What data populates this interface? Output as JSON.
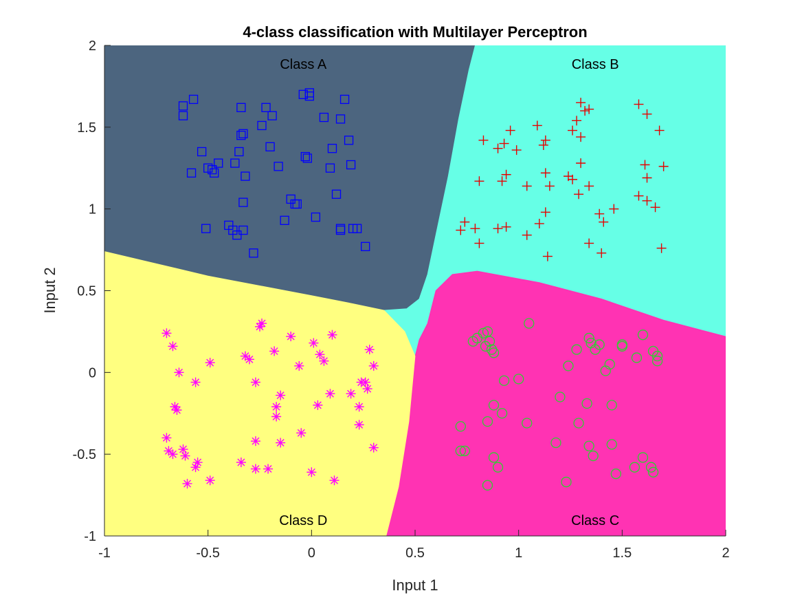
{
  "chart_data": {
    "type": "scatter",
    "title": "4-class classification with Multilayer Perceptron",
    "xlabel": "Input 1",
    "ylabel": "Input 2",
    "xlim": [
      -1,
      2
    ],
    "ylim": [
      -1,
      2
    ],
    "xticks": [
      -1,
      -0.5,
      0,
      0.5,
      1,
      1.5,
      2
    ],
    "xtick_labels": [
      "-1",
      "-0.5",
      "0",
      "0.5",
      "1",
      "1.5",
      "2"
    ],
    "yticks": [
      -1,
      -0.5,
      0,
      0.5,
      1,
      1.5,
      2
    ],
    "ytick_labels": [
      "-1",
      "-0.5",
      "0",
      "0.5",
      "1",
      "1.5",
      "2"
    ],
    "grid": false,
    "regions": [
      {
        "label": "Class A",
        "color": "#4c657f",
        "label_at": [
          -0.04,
          1.88
        ],
        "boundary": [
          [
            -1,
            2
          ],
          [
            0.79,
            2
          ],
          [
            0.76,
            1.85
          ],
          [
            0.71,
            1.55
          ],
          [
            0.66,
            1.2
          ],
          [
            0.61,
            0.9
          ],
          [
            0.56,
            0.6
          ],
          [
            0.52,
            0.45
          ],
          [
            0.46,
            0.39
          ],
          [
            0.35,
            0.38
          ],
          [
            0.2,
            0.42
          ],
          [
            0,
            0.47
          ],
          [
            -0.5,
            0.59
          ],
          [
            -1,
            0.74
          ]
        ]
      },
      {
        "label": "Class B",
        "color": "#66ffe6",
        "label_at": [
          1.37,
          1.88
        ],
        "boundary": [
          [
            0.79,
            2
          ],
          [
            2,
            2
          ],
          [
            2,
            0.22
          ],
          [
            1.7,
            0.32
          ],
          [
            1.4,
            0.45
          ],
          [
            1.1,
            0.55
          ],
          [
            0.8,
            0.62
          ],
          [
            0.68,
            0.6
          ],
          [
            0.6,
            0.5
          ],
          [
            0.56,
            0.3
          ],
          [
            0.52,
            0.2
          ],
          [
            0.5,
            0.1
          ],
          [
            0.45,
            0.25
          ],
          [
            0.35,
            0.38
          ],
          [
            0.46,
            0.39
          ],
          [
            0.52,
            0.45
          ],
          [
            0.56,
            0.6
          ],
          [
            0.61,
            0.9
          ],
          [
            0.66,
            1.2
          ],
          [
            0.71,
            1.55
          ],
          [
            0.76,
            1.85
          ]
        ]
      },
      {
        "label": "Class C",
        "color": "#ff33b3",
        "label_at": [
          1.37,
          -0.91
        ],
        "boundary": [
          [
            0.5,
            0.1
          ],
          [
            0.52,
            0.2
          ],
          [
            0.56,
            0.3
          ],
          [
            0.6,
            0.5
          ],
          [
            0.68,
            0.6
          ],
          [
            0.8,
            0.62
          ],
          [
            1.1,
            0.55
          ],
          [
            1.4,
            0.45
          ],
          [
            1.7,
            0.32
          ],
          [
            2,
            0.22
          ],
          [
            2,
            -1
          ],
          [
            0.36,
            -1
          ],
          [
            0.42,
            -0.7
          ],
          [
            0.47,
            -0.3
          ]
        ]
      },
      {
        "label": "Class D",
        "color": "#ffff80",
        "label_at": [
          -0.04,
          -0.91
        ],
        "boundary": [
          [
            -1,
            0.74
          ],
          [
            -0.5,
            0.59
          ],
          [
            0,
            0.47
          ],
          [
            0.2,
            0.42
          ],
          [
            0.35,
            0.38
          ],
          [
            0.45,
            0.25
          ],
          [
            0.5,
            0.1
          ],
          [
            0.47,
            -0.3
          ],
          [
            0.42,
            -0.7
          ],
          [
            0.36,
            -1
          ],
          [
            -1,
            -1
          ]
        ]
      }
    ],
    "series": [
      {
        "label": "Class A",
        "marker": "square",
        "color": "#0000ff",
        "points": [
          [
            -0.62,
            1.63
          ],
          [
            -0.57,
            1.67
          ],
          [
            -0.62,
            1.57
          ],
          [
            -0.34,
            1.62
          ],
          [
            -0.22,
            1.62
          ],
          [
            -0.04,
            1.7
          ],
          [
            -0.01,
            1.69
          ],
          [
            -0.01,
            1.71
          ],
          [
            0.16,
            1.67
          ],
          [
            -0.19,
            1.57
          ],
          [
            0.06,
            1.56
          ],
          [
            0.14,
            1.55
          ],
          [
            -0.24,
            1.51
          ],
          [
            -0.34,
            1.45
          ],
          [
            -0.33,
            1.46
          ],
          [
            0.18,
            1.42
          ],
          [
            -0.53,
            1.35
          ],
          [
            -0.35,
            1.35
          ],
          [
            -0.2,
            1.38
          ],
          [
            0.1,
            1.37
          ],
          [
            -0.37,
            1.28
          ],
          [
            -0.45,
            1.28
          ],
          [
            -0.5,
            1.25
          ],
          [
            -0.48,
            1.24
          ],
          [
            -0.47,
            1.22
          ],
          [
            -0.58,
            1.22
          ],
          [
            -0.16,
            1.26
          ],
          [
            -0.03,
            1.32
          ],
          [
            -0.02,
            1.31
          ],
          [
            0.09,
            1.25
          ],
          [
            0.19,
            1.27
          ],
          [
            -0.32,
            1.2
          ],
          [
            -0.33,
            1.04
          ],
          [
            -0.1,
            1.06
          ],
          [
            -0.07,
            1.03
          ],
          [
            -0.08,
            1.03
          ],
          [
            0.12,
            1.09
          ],
          [
            -0.51,
            0.88
          ],
          [
            -0.4,
            0.9
          ],
          [
            -0.38,
            0.87
          ],
          [
            -0.36,
            0.84
          ],
          [
            -0.33,
            0.87
          ],
          [
            -0.13,
            0.93
          ],
          [
            0.02,
            0.95
          ],
          [
            0.14,
            0.88
          ],
          [
            0.14,
            0.87
          ],
          [
            0.2,
            0.88
          ],
          [
            0.22,
            0.88
          ],
          [
            0.26,
            0.77
          ],
          [
            -0.28,
            0.73
          ]
        ]
      },
      {
        "label": "Class B",
        "marker": "plus",
        "color": "#e60000",
        "points": [
          [
            1.3,
            1.65
          ],
          [
            1.32,
            1.6
          ],
          [
            1.34,
            1.61
          ],
          [
            1.58,
            1.64
          ],
          [
            1.62,
            1.58
          ],
          [
            1.28,
            1.54
          ],
          [
            1.26,
            1.48
          ],
          [
            1.68,
            1.48
          ],
          [
            1.09,
            1.51
          ],
          [
            0.96,
            1.48
          ],
          [
            0.83,
            1.42
          ],
          [
            1.3,
            1.44
          ],
          [
            1.13,
            1.42
          ],
          [
            0.9,
            1.37
          ],
          [
            0.93,
            1.4
          ],
          [
            1.12,
            1.39
          ],
          [
            0.99,
            1.36
          ],
          [
            1.3,
            1.28
          ],
          [
            1.61,
            1.27
          ],
          [
            1.7,
            1.26
          ],
          [
            1.13,
            1.22
          ],
          [
            1.24,
            1.2
          ],
          [
            1.26,
            1.18
          ],
          [
            0.94,
            1.21
          ],
          [
            0.92,
            1.17
          ],
          [
            0.81,
            1.17
          ],
          [
            1.62,
            1.19
          ],
          [
            1.04,
            1.14
          ],
          [
            1.15,
            1.14
          ],
          [
            1.34,
            1.14
          ],
          [
            1.29,
            1.09
          ],
          [
            1.58,
            1.08
          ],
          [
            1.62,
            1.05
          ],
          [
            1.66,
            1.01
          ],
          [
            1.46,
            1.0
          ],
          [
            1.39,
            0.97
          ],
          [
            1.13,
            0.98
          ],
          [
            1.1,
            0.91
          ],
          [
            1.41,
            0.92
          ],
          [
            0.74,
            0.92
          ],
          [
            0.72,
            0.87
          ],
          [
            0.79,
            0.88
          ],
          [
            0.9,
            0.88
          ],
          [
            0.94,
            0.89
          ],
          [
            1.04,
            0.84
          ],
          [
            0.81,
            0.79
          ],
          [
            1.34,
            0.79
          ],
          [
            1.4,
            0.73
          ],
          [
            1.69,
            0.76
          ],
          [
            1.14,
            0.71
          ]
        ]
      },
      {
        "label": "Class C",
        "marker": "circle",
        "color": "#33cc33",
        "points": [
          [
            1.05,
            0.3
          ],
          [
            0.83,
            0.24
          ],
          [
            0.85,
            0.25
          ],
          [
            0.8,
            0.21
          ],
          [
            0.78,
            0.19
          ],
          [
            0.86,
            0.19
          ],
          [
            0.87,
            0.14
          ],
          [
            0.88,
            0.12
          ],
          [
            0.84,
            0.16
          ],
          [
            1.34,
            0.21
          ],
          [
            1.35,
            0.18
          ],
          [
            1.39,
            0.17
          ],
          [
            1.5,
            0.17
          ],
          [
            1.5,
            0.16
          ],
          [
            1.6,
            0.23
          ],
          [
            1.28,
            0.14
          ],
          [
            1.37,
            0.14
          ],
          [
            1.65,
            0.13
          ],
          [
            1.67,
            0.1
          ],
          [
            1.67,
            0.07
          ],
          [
            1.57,
            0.09
          ],
          [
            1.24,
            0.04
          ],
          [
            1.44,
            0.05
          ],
          [
            1.42,
            0.01
          ],
          [
            0.93,
            -0.05
          ],
          [
            1.0,
            -0.04
          ],
          [
            1.2,
            -0.15
          ],
          [
            1.33,
            -0.19
          ],
          [
            1.45,
            -0.2
          ],
          [
            0.88,
            -0.2
          ],
          [
            0.92,
            -0.25
          ],
          [
            0.85,
            -0.3
          ],
          [
            1.04,
            -0.31
          ],
          [
            1.29,
            -0.31
          ],
          [
            0.72,
            -0.33
          ],
          [
            1.18,
            -0.43
          ],
          [
            1.34,
            -0.45
          ],
          [
            1.45,
            -0.44
          ],
          [
            0.72,
            -0.48
          ],
          [
            0.74,
            -0.48
          ],
          [
            0.88,
            -0.52
          ],
          [
            1.36,
            -0.51
          ],
          [
            1.6,
            -0.52
          ],
          [
            0.9,
            -0.58
          ],
          [
            1.56,
            -0.58
          ],
          [
            1.64,
            -0.58
          ],
          [
            1.65,
            -0.61
          ],
          [
            1.47,
            -0.62
          ],
          [
            1.23,
            -0.67
          ],
          [
            0.85,
            -0.69
          ]
        ]
      },
      {
        "label": "Class D",
        "marker": "asterisk",
        "color": "#ff00ff",
        "points": [
          [
            -0.7,
            0.24
          ],
          [
            -0.67,
            0.16
          ],
          [
            -0.24,
            0.3
          ],
          [
            -0.25,
            0.28
          ],
          [
            -0.1,
            0.22
          ],
          [
            0.1,
            0.23
          ],
          [
            0.01,
            0.18
          ],
          [
            0.28,
            0.14
          ],
          [
            -0.18,
            0.13
          ],
          [
            0.04,
            0.11
          ],
          [
            -0.32,
            0.1
          ],
          [
            -0.3,
            0.08
          ],
          [
            -0.49,
            0.06
          ],
          [
            0.06,
            0.07
          ],
          [
            0.3,
            0.04
          ],
          [
            -0.06,
            0.04
          ],
          [
            -0.64,
            0.0
          ],
          [
            -0.56,
            -0.06
          ],
          [
            -0.27,
            -0.06
          ],
          [
            0.24,
            -0.06
          ],
          [
            0.26,
            -0.06
          ],
          [
            0.27,
            -0.1
          ],
          [
            0.19,
            -0.13
          ],
          [
            0.09,
            -0.13
          ],
          [
            -0.15,
            -0.14
          ],
          [
            -0.17,
            -0.21
          ],
          [
            0.03,
            -0.2
          ],
          [
            -0.66,
            -0.21
          ],
          [
            -0.65,
            -0.23
          ],
          [
            -0.17,
            -0.27
          ],
          [
            0.23,
            -0.21
          ],
          [
            0.23,
            -0.32
          ],
          [
            -0.05,
            -0.37
          ],
          [
            -0.7,
            -0.4
          ],
          [
            -0.27,
            -0.42
          ],
          [
            -0.15,
            -0.43
          ],
          [
            0.3,
            -0.46
          ],
          [
            -0.69,
            -0.48
          ],
          [
            -0.62,
            -0.47
          ],
          [
            -0.67,
            -0.5
          ],
          [
            -0.61,
            -0.51
          ],
          [
            -0.55,
            -0.55
          ],
          [
            -0.56,
            -0.58
          ],
          [
            -0.34,
            -0.55
          ],
          [
            -0.27,
            -0.59
          ],
          [
            -0.21,
            -0.59
          ],
          [
            0.0,
            -0.61
          ],
          [
            -0.49,
            -0.66
          ],
          [
            0.11,
            -0.66
          ],
          [
            -0.6,
            -0.68
          ]
        ]
      }
    ]
  }
}
